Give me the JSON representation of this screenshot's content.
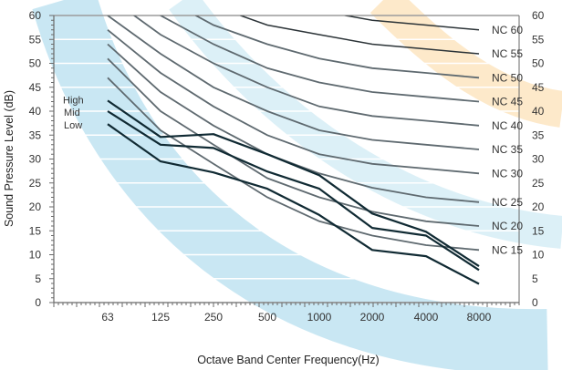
{
  "chart_data": {
    "type": "line",
    "x": [
      "63",
      "125",
      "250",
      "500",
      "1000",
      "2000",
      "4000",
      "8000"
    ],
    "xlabel": "Octave Band Center Frequency(Hz)",
    "ylabel": "Sound Pressure Level (dB)",
    "ylim": [
      0,
      60
    ],
    "yticks": [
      0,
      5,
      10,
      15,
      20,
      25,
      30,
      35,
      40,
      45,
      50,
      55,
      60
    ],
    "grid": true,
    "nc_curves": [
      {
        "name": "NC 15",
        "values": [
          47,
          36,
          29,
          22,
          17,
          14,
          12,
          11
        ]
      },
      {
        "name": "NC 20",
        "values": [
          51,
          40,
          33,
          26,
          22,
          19,
          17,
          16
        ]
      },
      {
        "name": "NC 25",
        "values": [
          54,
          44,
          37,
          31,
          27,
          24,
          22,
          21
        ]
      },
      {
        "name": "NC 30",
        "values": [
          57,
          48,
          41,
          35,
          31,
          29,
          28,
          27
        ]
      },
      {
        "name": "NC 35",
        "values": [
          60,
          52,
          45,
          40,
          36,
          34,
          33,
          32
        ]
      },
      {
        "name": "NC 40",
        "values": [
          64,
          56,
          50,
          45,
          41,
          39,
          38,
          37
        ]
      },
      {
        "name": "NC 45",
        "values": [
          67,
          60,
          54,
          49,
          46,
          44,
          43,
          42
        ]
      },
      {
        "name": "NC 50",
        "values": [
          71,
          64,
          58,
          54,
          51,
          49,
          48,
          47
        ]
      },
      {
        "name": "NC 55",
        "values": [
          74,
          67,
          62,
          58,
          56,
          54,
          53,
          52
        ]
      },
      {
        "name": "NC 60",
        "values": [
          77,
          71,
          67,
          63,
          61,
          59,
          58,
          57
        ]
      }
    ],
    "series": [
      {
        "name": "High",
        "values": [
          42.2,
          34.6,
          35.2,
          31,
          26.6,
          18.6,
          14.8,
          7.6
        ]
      },
      {
        "name": "Mid",
        "values": [
          40,
          33,
          32.3,
          27.4,
          23.8,
          15.6,
          14,
          6.8
        ]
      },
      {
        "name": "Low",
        "values": [
          37.3,
          29.5,
          27.2,
          23.8,
          18.3,
          11,
          9.7,
          3.9
        ]
      }
    ],
    "colors": {
      "nc_curve": "#5f6a70",
      "nc_curve_bold": "#2c3438",
      "series_line": "#102a33",
      "grid": "#ffffff",
      "axis": "#6a6a6a",
      "band_blue": "#bfe3f1",
      "band_orange": "#fde3bd"
    }
  }
}
